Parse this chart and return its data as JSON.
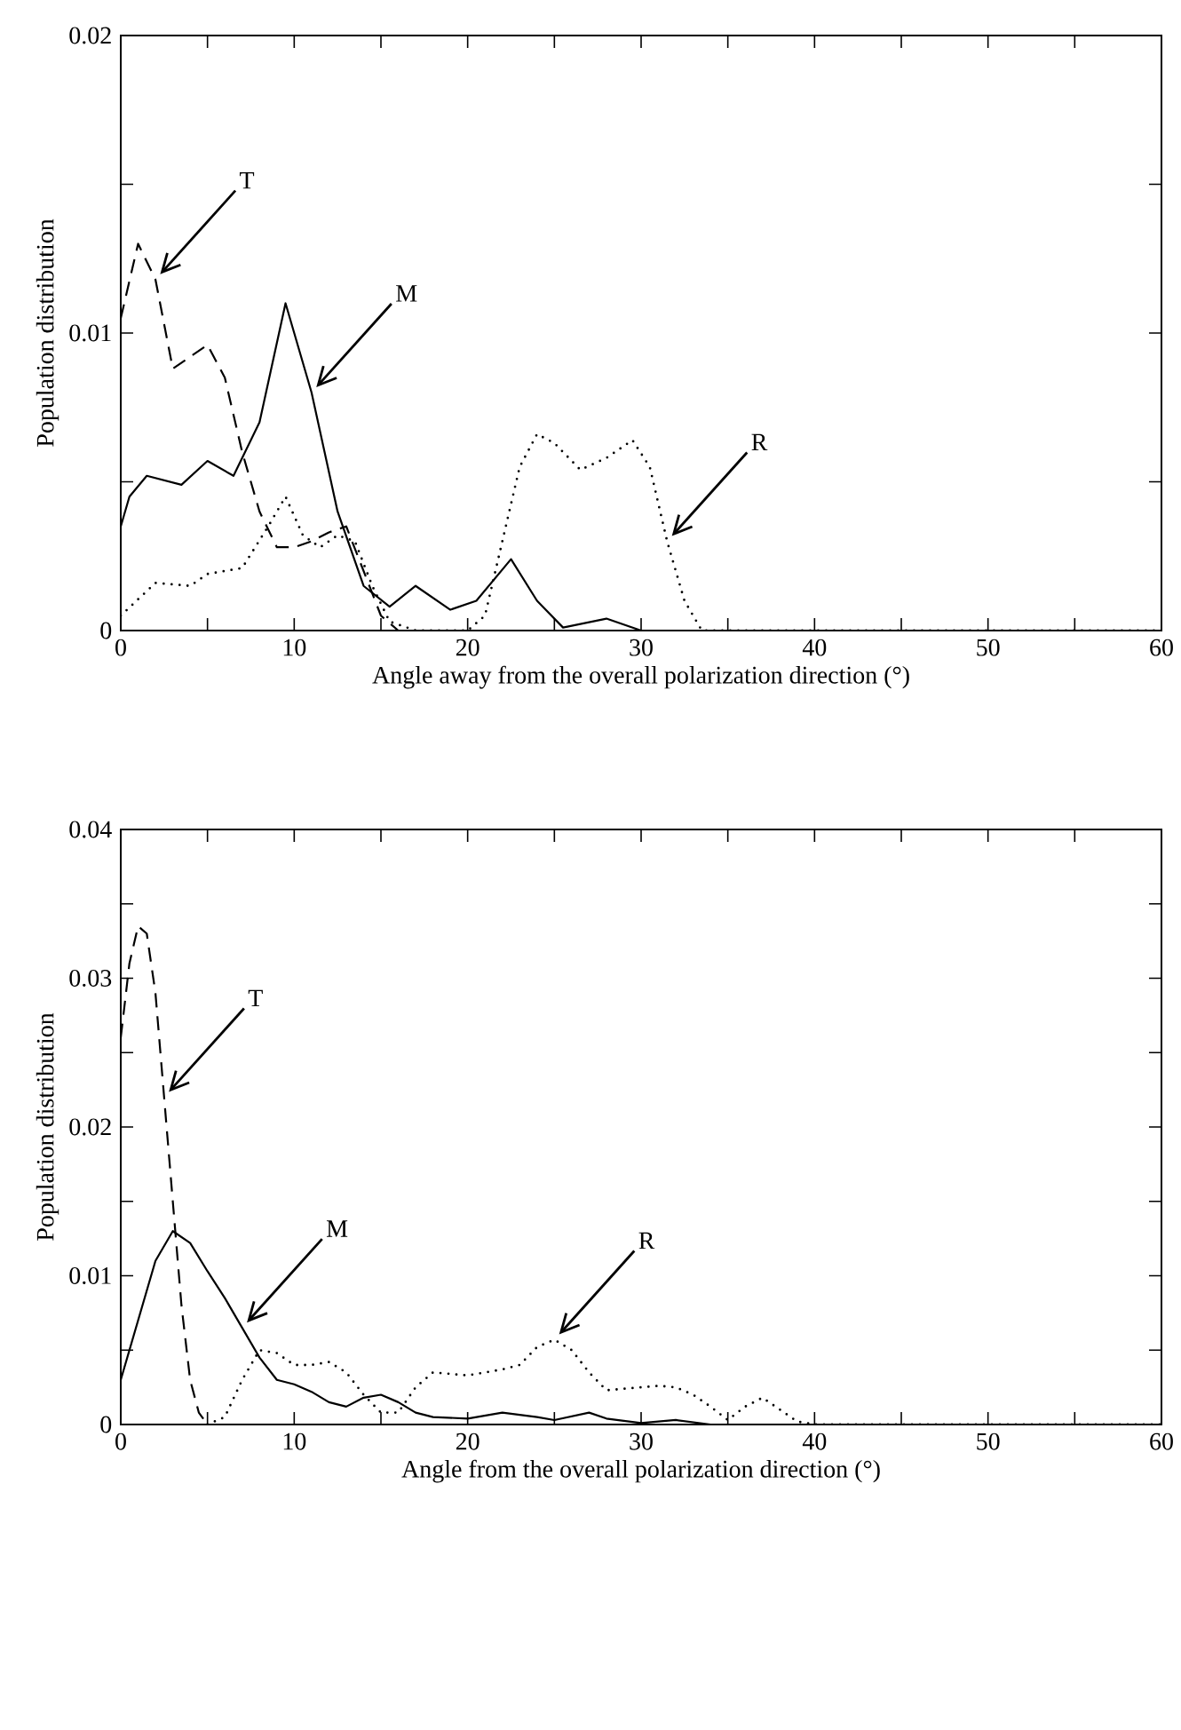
{
  "chart_data": [
    {
      "type": "line",
      "xlabel": "Angle away from the overall polarization direction (°)",
      "ylabel": "Population distribution",
      "xlim": [
        0,
        60
      ],
      "ylim": [
        0,
        0.02
      ],
      "xticks": [
        0,
        {
          "value": 5,
          "label": null
        },
        10,
        {
          "value": 15,
          "label": null
        },
        20,
        {
          "value": 25,
          "label": null
        },
        30,
        {
          "value": 35,
          "label": null
        },
        40,
        {
          "value": 45,
          "label": null
        },
        50,
        {
          "value": 55,
          "label": null
        },
        60
      ],
      "yticks": [
        0,
        {
          "value": 0.005,
          "label": null
        },
        0.01,
        {
          "value": 0.015,
          "label": null
        },
        0.02
      ],
      "series": [
        {
          "color": "#000000",
          "line_style": "solid",
          "x": [
            0,
            0.5,
            1.5,
            3.5,
            5,
            6.5,
            8,
            9.5,
            11,
            12.5,
            14,
            15.5,
            17,
            19,
            20.5,
            22.5,
            24,
            25.5,
            28,
            30,
            60
          ],
          "values": [
            0.0035,
            0.0045,
            0.0052,
            0.0049,
            0.0057,
            0.0052,
            0.007,
            0.011,
            0.008,
            0.004,
            0.0015,
            0.0008,
            0.0015,
            0.0007,
            0.001,
            0.0024,
            0.001,
            0.0001,
            0.0004,
            0,
            0
          ]
        },
        {
          "color": "#000000",
          "line_style": "dashed",
          "x": [
            0,
            1,
            2,
            3,
            4,
            5,
            6,
            7,
            8,
            9,
            10,
            11,
            12,
            13,
            14,
            15,
            16,
            60
          ],
          "values": [
            0.0105,
            0.013,
            0.0118,
            0.0088,
            0.0092,
            0.0096,
            0.0085,
            0.006,
            0.004,
            0.0028,
            0.0028,
            0.003,
            0.0033,
            0.0035,
            0.002,
            0.0005,
            0,
            0
          ]
        },
        {
          "color": "#000000",
          "line_style": "dotted",
          "x": [
            0,
            2,
            4,
            5,
            7,
            8.5,
            9.5,
            10.5,
            11.5,
            12.5,
            13.5,
            14.5,
            15.5,
            17,
            20,
            21,
            22,
            23,
            24,
            25,
            26.5,
            28,
            29.5,
            30.5,
            31.5,
            32.5,
            33.5,
            60
          ],
          "values": [
            0.0005,
            0.0016,
            0.0015,
            0.0019,
            0.0021,
            0.0035,
            0.0045,
            0.0032,
            0.0028,
            0.0032,
            0.003,
            0.0015,
            0.0003,
            0,
            0,
            0.0005,
            0.003,
            0.0055,
            0.0066,
            0.0063,
            0.0054,
            0.0058,
            0.0064,
            0.0055,
            0.003,
            0.001,
            0,
            0
          ]
        }
      ],
      "annotations": [
        {
          "text": "T",
          "x": 2,
          "y": 0.0118
        },
        {
          "text": "M",
          "x": 11,
          "y": 0.008
        },
        {
          "text": "R",
          "x": 31.5,
          "y": 0.003
        }
      ]
    },
    {
      "type": "line",
      "xlabel": "Angle from the overall polarization direction (°)",
      "ylabel": "Population distribution",
      "xlim": [
        0,
        60
      ],
      "ylim": [
        0,
        0.04
      ],
      "xticks": [
        0,
        {
          "value": 5,
          "label": null
        },
        10,
        {
          "value": 15,
          "label": null
        },
        20,
        {
          "value": 25,
          "label": null
        },
        30,
        {
          "value": 35,
          "label": null
        },
        40,
        {
          "value": 45,
          "label": null
        },
        50,
        {
          "value": 55,
          "label": null
        },
        60
      ],
      "yticks": [
        0,
        {
          "value": 0.005,
          "label": null
        },
        0.01,
        {
          "value": 0.015,
          "label": null
        },
        0.02,
        {
          "value": 0.025,
          "label": null
        },
        0.03,
        {
          "value": 0.035,
          "label": null
        },
        0.04
      ],
      "series": [
        {
          "color": "#000000",
          "line_style": "solid",
          "x": [
            0,
            1,
            2,
            3,
            4,
            5,
            6,
            7,
            8,
            9,
            10,
            11,
            12,
            13,
            14,
            15,
            16,
            17,
            18,
            20,
            22,
            24,
            25,
            27,
            28,
            30,
            32,
            34,
            60
          ],
          "values": [
            0.003,
            0.007,
            0.011,
            0.013,
            0.0122,
            0.0103,
            0.0085,
            0.0065,
            0.0045,
            0.003,
            0.0027,
            0.0022,
            0.0015,
            0.0012,
            0.0018,
            0.002,
            0.0015,
            0.0008,
            0.0005,
            0.0004,
            0.0008,
            0.0005,
            0.0003,
            0.0008,
            0.0004,
            0.0001,
            0.0003,
            0,
            0
          ]
        },
        {
          "color": "#000000",
          "line_style": "dashed",
          "x": [
            0,
            0.5,
            1,
            1.5,
            2,
            2.5,
            3,
            3.5,
            4,
            4.5,
            5,
            60
          ],
          "values": [
            0.026,
            0.031,
            0.0335,
            0.033,
            0.029,
            0.022,
            0.015,
            0.008,
            0.003,
            0.0008,
            0,
            0
          ]
        },
        {
          "color": "#000000",
          "line_style": "dotted",
          "x": [
            5,
            6,
            7,
            8,
            9,
            10,
            11,
            12,
            13,
            14,
            15,
            16,
            17,
            18,
            19,
            20,
            21,
            22,
            23,
            24,
            25,
            26,
            27,
            28,
            29,
            30,
            31,
            32,
            33,
            34,
            35,
            36,
            37,
            38,
            39,
            40,
            60
          ],
          "values": [
            0,
            0.0005,
            0.003,
            0.005,
            0.0048,
            0.004,
            0.004,
            0.0042,
            0.0035,
            0.002,
            0.0008,
            0.0008,
            0.0025,
            0.0035,
            0.0034,
            0.0033,
            0.0035,
            0.0037,
            0.004,
            0.0052,
            0.0057,
            0.005,
            0.0035,
            0.0023,
            0.0024,
            0.0025,
            0.0026,
            0.0025,
            0.002,
            0.0012,
            0.0003,
            0.0012,
            0.0018,
            0.001,
            0.0002,
            0,
            0
          ]
        }
      ],
      "annotations": [
        {
          "text": "T",
          "x": 2.5,
          "y": 0.022
        },
        {
          "text": "M",
          "x": 7,
          "y": 0.0065
        },
        {
          "text": "R",
          "x": 25,
          "y": 0.0057
        }
      ]
    }
  ]
}
